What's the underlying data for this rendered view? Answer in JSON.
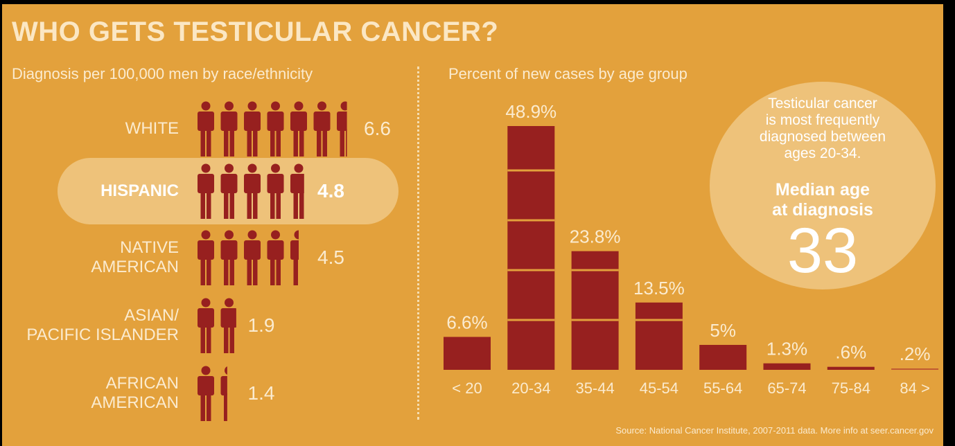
{
  "title": "WHO GETS TESTICULAR CANCER?",
  "left_panel": {
    "subtitle": "Diagnosis per 100,000 men by race/ethnicity",
    "rows": [
      {
        "label_lines": [
          "WHITE"
        ],
        "value": 6.6,
        "value_label": "6.6",
        "highlight": false
      },
      {
        "label_lines": [
          "HISPANIC"
        ],
        "value": 4.8,
        "value_label": "4.8",
        "highlight": true
      },
      {
        "label_lines": [
          "NATIVE",
          "AMERICAN"
        ],
        "value": 4.5,
        "value_label": "4.5",
        "highlight": false
      },
      {
        "label_lines": [
          "ASIAN/",
          "PACIFIC ISLANDER"
        ],
        "value": 1.9,
        "value_label": "1.9",
        "highlight": false
      },
      {
        "label_lines": [
          "AFRICAN",
          "AMERICAN"
        ],
        "value": 1.4,
        "value_label": "1.4",
        "highlight": false
      }
    ]
  },
  "right_panel": {
    "subtitle": "Percent of new cases by age group"
  },
  "chart_data": {
    "type": "bar",
    "categories": [
      "< 20",
      "20-34",
      "35-44",
      "45-54",
      "55-64",
      "65-74",
      "75-84",
      "84 >"
    ],
    "values": [
      6.6,
      48.9,
      23.8,
      13.5,
      5,
      1.3,
      0.6,
      0.2
    ],
    "data_labels": [
      "6.6%",
      "48.9%",
      "23.8%",
      "13.5%",
      "5%",
      "1.3%",
      ".6%",
      ".2%"
    ],
    "segment_step": 10,
    "ylim": [
      0,
      50
    ]
  },
  "callout": {
    "note_lines": [
      "Testicular cancer",
      "is most frequently",
      "diagnosed between",
      "ages 20-34."
    ],
    "median_lines": [
      "Median age",
      "at diagnosis"
    ],
    "median_value": "33"
  },
  "source": "Source: National Cancer Institute, 2007-2011 data. More info at seer.cancer.gov",
  "colors": {
    "background": "#e3a13c",
    "bar": "#97201f",
    "highlight_pill": "#eec27a",
    "text_light": "#fbebcf",
    "text_white": "#ffffff"
  }
}
